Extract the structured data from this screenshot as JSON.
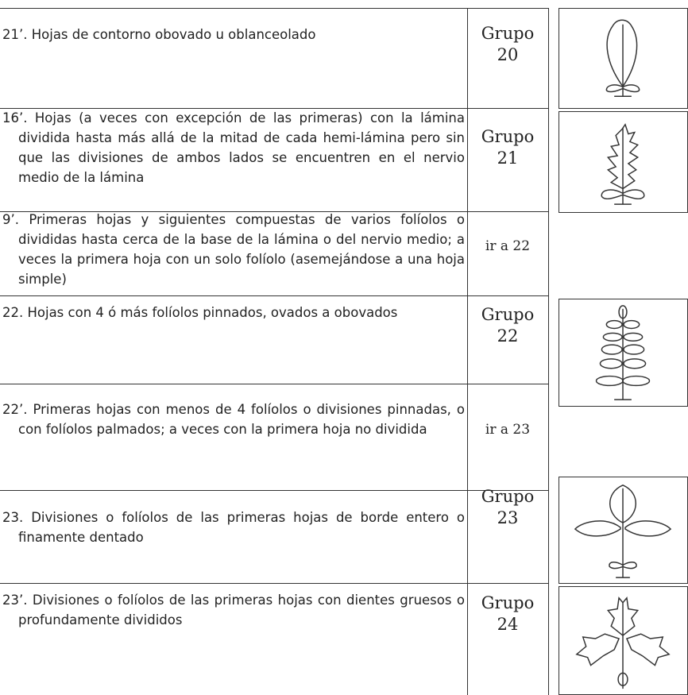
{
  "rows": [
    {
      "text": "21’. Hojas de contorno obovado u oblanceolado",
      "group": "Grupo 20"
    },
    {
      "text": "16’. Hojas (a veces con excepción de las primeras) con la lámina dividida hasta más allá de la mitad de cada hemi-lámina pero sin que las divisiones de ambos lados se encuentren en el nervio medio de la lámina",
      "group": "Grupo 21"
    },
    {
      "text": "9’. Primeras hojas y siguientes compuestas de varios folíolos o divididas hasta cerca de la base de la lámina o del nervio medio; a veces la primera hoja con un solo folíolo (asemejándose a una hoja simple)",
      "group": "ir a 22"
    },
    {
      "text": "22. Hojas con 4 ó más folíolos pinnados, ovados a obovados",
      "group": "Grupo 22"
    },
    {
      "text": "22’. Primeras hojas con menos de 4 folíolos o divisiones pinnadas, o con folíolos palmados; a veces con la primera hoja no dividida",
      "group": "ir a 23"
    },
    {
      "text": "23. Divisiones o folíolos de las primeras hojas de borde entero o finamente dentado",
      "group": "Grupo 23"
    },
    {
      "text": "23’. Divisiones o folíolos de las primeras hojas con dientes gruesos o profundamente divididos",
      "group": "Grupo 24"
    }
  ]
}
